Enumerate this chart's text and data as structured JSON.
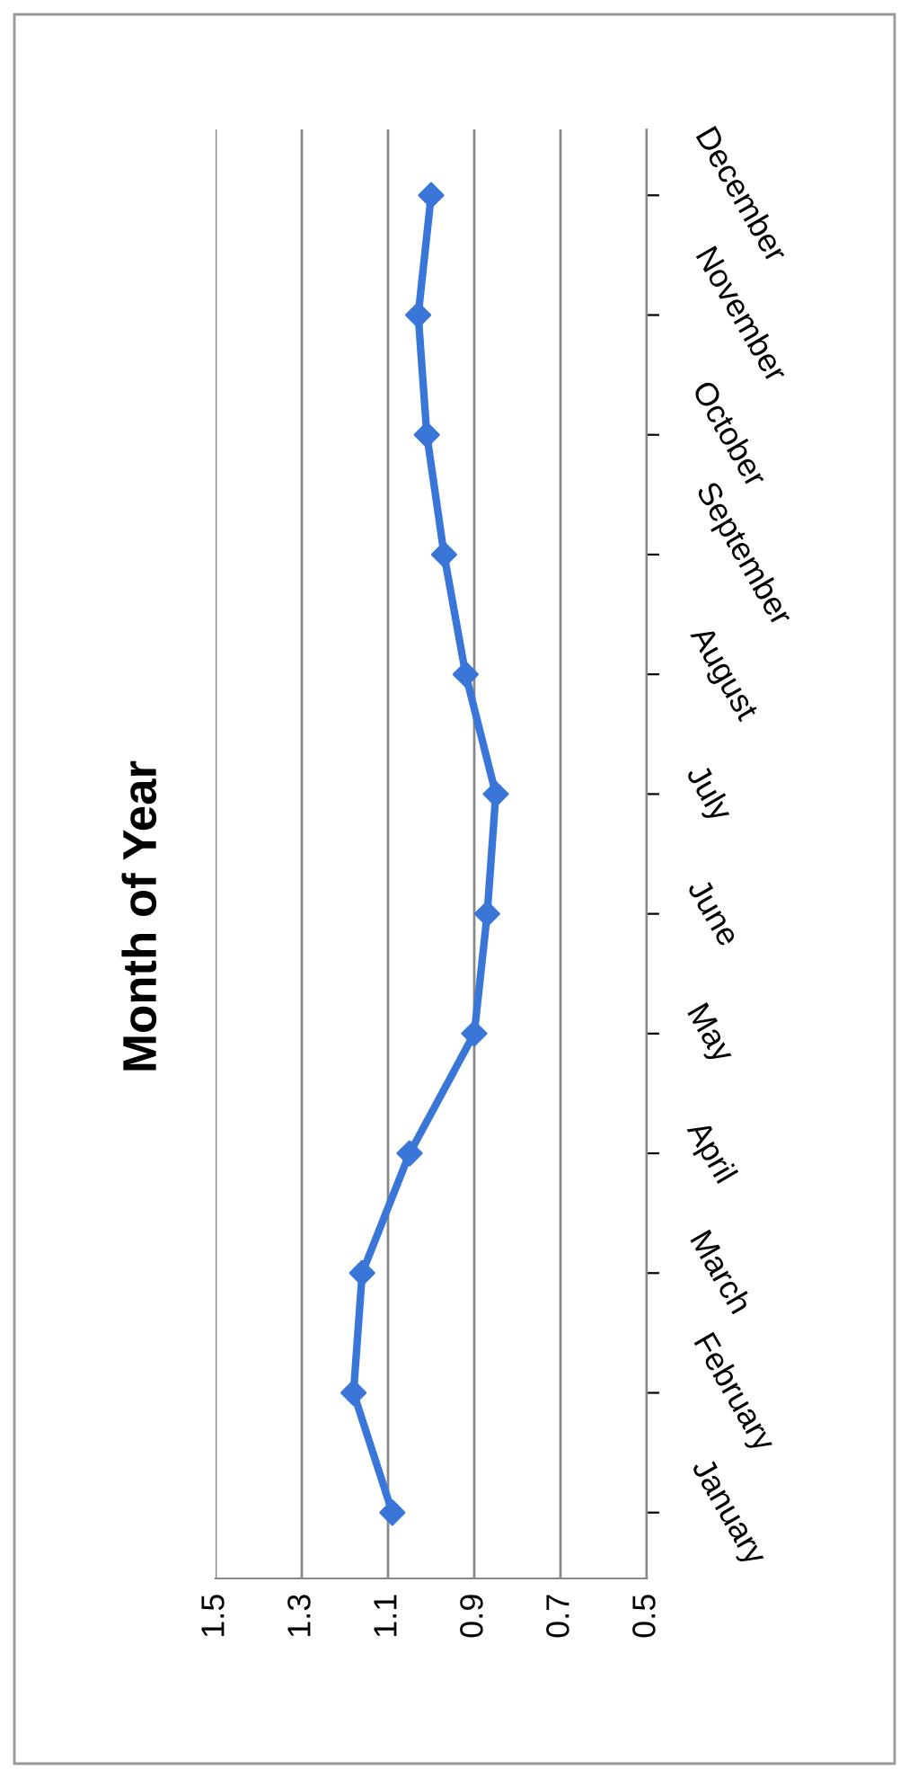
{
  "chart_data": {
    "type": "line",
    "title": "Month of Year",
    "orientation": "horizontal",
    "categories": [
      "December",
      "November",
      "October",
      "September",
      "August",
      "July",
      "June",
      "May",
      "April",
      "March",
      "February",
      "January"
    ],
    "values": [
      1.0,
      1.03,
      1.01,
      0.97,
      0.92,
      0.85,
      0.87,
      0.9,
      1.05,
      1.16,
      1.18,
      1.09
    ],
    "color": "#3a76d8",
    "marker": "diamond",
    "grid": "x",
    "xlim": [
      1.5,
      0.5
    ],
    "xticks": [
      1.5,
      1.3,
      1.1,
      0.9,
      0.7,
      0.5
    ]
  }
}
